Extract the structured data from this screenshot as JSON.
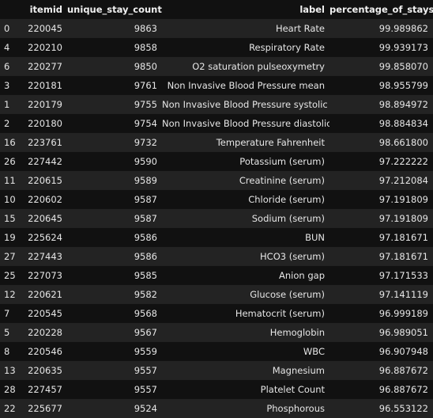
{
  "table": {
    "columns": {
      "index": "",
      "itemid": "itemid",
      "unique_stay_count": "unique_stay_count",
      "label": "label",
      "percentage_of_stays": "percentage_of_stays"
    },
    "rows": [
      {
        "index": "0",
        "itemid": "220045",
        "unique_stay_count": "9863",
        "label": "Heart Rate",
        "percentage_of_stays": "99.989862"
      },
      {
        "index": "4",
        "itemid": "220210",
        "unique_stay_count": "9858",
        "label": "Respiratory Rate",
        "percentage_of_stays": "99.939173"
      },
      {
        "index": "6",
        "itemid": "220277",
        "unique_stay_count": "9850",
        "label": "O2 saturation pulseoxymetry",
        "percentage_of_stays": "99.858070"
      },
      {
        "index": "3",
        "itemid": "220181",
        "unique_stay_count": "9761",
        "label": "Non Invasive Blood Pressure mean",
        "percentage_of_stays": "98.955799"
      },
      {
        "index": "1",
        "itemid": "220179",
        "unique_stay_count": "9755",
        "label": "Non Invasive Blood Pressure systolic",
        "percentage_of_stays": "98.894972"
      },
      {
        "index": "2",
        "itemid": "220180",
        "unique_stay_count": "9754",
        "label": "Non Invasive Blood Pressure diastolic",
        "percentage_of_stays": "98.884834"
      },
      {
        "index": "16",
        "itemid": "223761",
        "unique_stay_count": "9732",
        "label": "Temperature Fahrenheit",
        "percentage_of_stays": "98.661800"
      },
      {
        "index": "26",
        "itemid": "227442",
        "unique_stay_count": "9590",
        "label": "Potassium (serum)",
        "percentage_of_stays": "97.222222"
      },
      {
        "index": "11",
        "itemid": "220615",
        "unique_stay_count": "9589",
        "label": "Creatinine (serum)",
        "percentage_of_stays": "97.212084"
      },
      {
        "index": "10",
        "itemid": "220602",
        "unique_stay_count": "9587",
        "label": "Chloride (serum)",
        "percentage_of_stays": "97.191809"
      },
      {
        "index": "15",
        "itemid": "220645",
        "unique_stay_count": "9587",
        "label": "Sodium (serum)",
        "percentage_of_stays": "97.191809"
      },
      {
        "index": "19",
        "itemid": "225624",
        "unique_stay_count": "9586",
        "label": "BUN",
        "percentage_of_stays": "97.181671"
      },
      {
        "index": "27",
        "itemid": "227443",
        "unique_stay_count": "9586",
        "label": "HCO3 (serum)",
        "percentage_of_stays": "97.181671"
      },
      {
        "index": "25",
        "itemid": "227073",
        "unique_stay_count": "9585",
        "label": "Anion gap",
        "percentage_of_stays": "97.171533"
      },
      {
        "index": "12",
        "itemid": "220621",
        "unique_stay_count": "9582",
        "label": "Glucose (serum)",
        "percentage_of_stays": "97.141119"
      },
      {
        "index": "7",
        "itemid": "220545",
        "unique_stay_count": "9568",
        "label": "Hematocrit (serum)",
        "percentage_of_stays": "96.999189"
      },
      {
        "index": "5",
        "itemid": "220228",
        "unique_stay_count": "9567",
        "label": "Hemoglobin",
        "percentage_of_stays": "96.989051"
      },
      {
        "index": "8",
        "itemid": "220546",
        "unique_stay_count": "9559",
        "label": "WBC",
        "percentage_of_stays": "96.907948"
      },
      {
        "index": "13",
        "itemid": "220635",
        "unique_stay_count": "9557",
        "label": "Magnesium",
        "percentage_of_stays": "96.887672"
      },
      {
        "index": "28",
        "itemid": "227457",
        "unique_stay_count": "9557",
        "label": "Platelet Count",
        "percentage_of_stays": "96.887672"
      },
      {
        "index": "22",
        "itemid": "225677",
        "unique_stay_count": "9524",
        "label": "Phosphorous",
        "percentage_of_stays": "96.553122"
      }
    ]
  },
  "colors": {
    "background": "#111111",
    "row_stripe": "#232323",
    "text": "#e6e6e6"
  }
}
